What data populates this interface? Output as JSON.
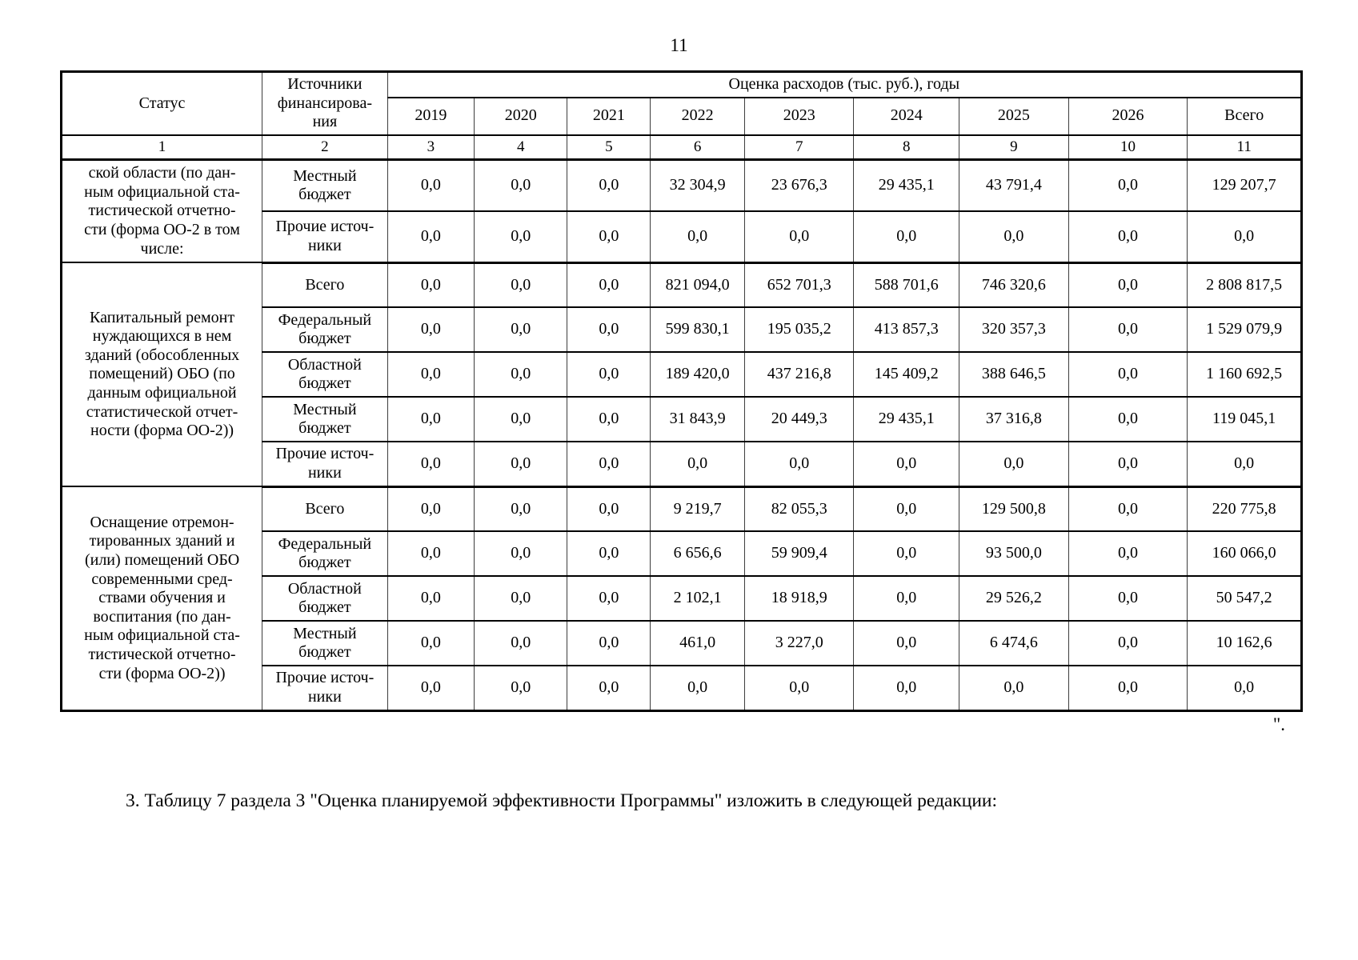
{
  "page": {
    "number": "11",
    "closing_mark": "\".",
    "footer_paragraph": "3. Таблицу 7 раздела 3 \"Оценка планируемой эффективности Программы\" изложить в следующей редакции:"
  },
  "table": {
    "header": {
      "status": "Статус",
      "source": "Источники\nфинансирова-\nния",
      "costs_title": "Оценка расходов (тыс. руб.), годы",
      "years": [
        "2019",
        "2020",
        "2021",
        "2022",
        "2023",
        "2024",
        "2025",
        "2026",
        "Всего"
      ],
      "col_numbers": [
        "1",
        "2",
        "3",
        "4",
        "5",
        "6",
        "7",
        "8",
        "9",
        "10",
        "11"
      ]
    },
    "col_widths_pct": [
      16.2,
      10.1,
      7.0,
      7.5,
      6.7,
      7.6,
      8.8,
      8.5,
      8.8,
      9.6,
      9.2
    ],
    "blocks": [
      {
        "status": "ской области (по дан-\nным официальной ста-\nтистической отчетно-\nсти (форма ОО-2 в том\nчисле:",
        "rows": [
          {
            "source": "Местный\nбюджет",
            "values": [
              "0,0",
              "0,0",
              "0,0",
              "32 304,9",
              "23 676,3",
              "29 435,1",
              "43 791,4",
              "0,0",
              "129 207,7"
            ]
          },
          {
            "source": "Прочие источ-\nники",
            "values": [
              "0,0",
              "0,0",
              "0,0",
              "0,0",
              "0,0",
              "0,0",
              "0,0",
              "0,0",
              "0,0"
            ]
          }
        ]
      },
      {
        "status": "Капитальный ремонт\nнуждающихся в нем\nзданий (обособленных\nпомещений) ОБО (по\nданным официальной\nстатистической отчет-\nности (форма ОО-2))",
        "rows": [
          {
            "source": "Всего",
            "values": [
              "0,0",
              "0,0",
              "0,0",
              "821 094,0",
              "652 701,3",
              "588 701,6",
              "746 320,6",
              "0,0",
              "2 808 817,5"
            ]
          },
          {
            "source": "Федеральный\nбюджет",
            "values": [
              "0,0",
              "0,0",
              "0,0",
              "599 830,1",
              "195 035,2",
              "413 857,3",
              "320 357,3",
              "0,0",
              "1 529 079,9"
            ]
          },
          {
            "source": "Областной\nбюджет",
            "values": [
              "0,0",
              "0,0",
              "0,0",
              "189 420,0",
              "437 216,8",
              "145 409,2",
              "388 646,5",
              "0,0",
              "1 160 692,5"
            ]
          },
          {
            "source": "Местный\nбюджет",
            "values": [
              "0,0",
              "0,0",
              "0,0",
              "31 843,9",
              "20 449,3",
              "29 435,1",
              "37 316,8",
              "0,0",
              "119 045,1"
            ]
          },
          {
            "source": "Прочие источ-\nники",
            "values": [
              "0,0",
              "0,0",
              "0,0",
              "0,0",
              "0,0",
              "0,0",
              "0,0",
              "0,0",
              "0,0"
            ]
          }
        ]
      },
      {
        "status": "Оснащение отремон-\nтированных зданий и\n(или) помещений ОБО\nсовременными сред-\nствами обучения и\nвоспитания (по дан-\nным официальной ста-\nтистической отчетно-\nсти (форма ОО-2))",
        "rows": [
          {
            "source": "Всего",
            "values": [
              "0,0",
              "0,0",
              "0,0",
              "9 219,7",
              "82 055,3",
              "0,0",
              "129 500,8",
              "0,0",
              "220 775,8"
            ]
          },
          {
            "source": "Федеральный\nбюджет",
            "values": [
              "0,0",
              "0,0",
              "0,0",
              "6 656,6",
              "59 909,4",
              "0,0",
              "93 500,0",
              "0,0",
              "160 066,0"
            ]
          },
          {
            "source": "Областной\nбюджет",
            "values": [
              "0,0",
              "0,0",
              "0,0",
              "2 102,1",
              "18 918,9",
              "0,0",
              "29 526,2",
              "0,0",
              "50 547,2"
            ]
          },
          {
            "source": "Местный\nбюджет",
            "values": [
              "0,0",
              "0,0",
              "0,0",
              "461,0",
              "3 227,0",
              "0,0",
              "6 474,6",
              "0,0",
              "10 162,6"
            ]
          },
          {
            "source": "Прочие источ-\nники",
            "values": [
              "0,0",
              "0,0",
              "0,0",
              "0,0",
              "0,0",
              "0,0",
              "0,0",
              "0,0",
              "0,0"
            ]
          }
        ]
      }
    ]
  }
}
